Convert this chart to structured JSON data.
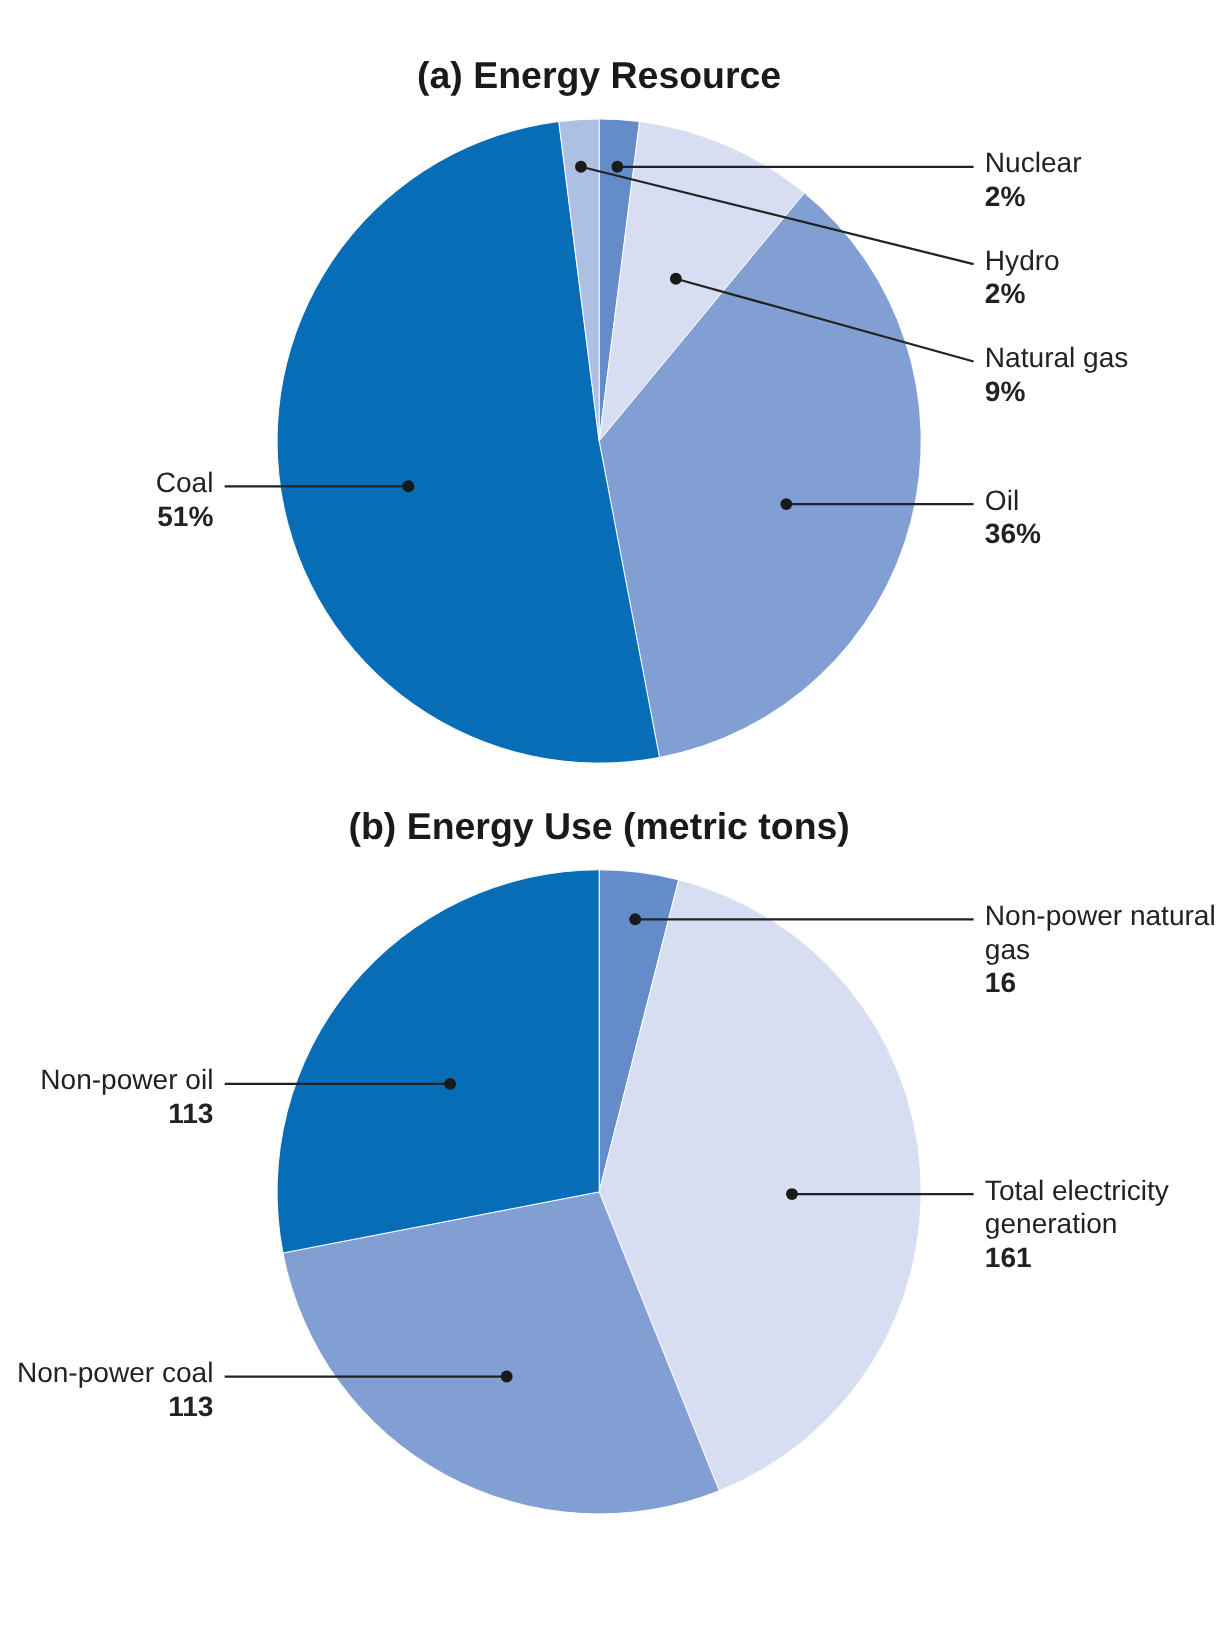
{
  "chart_data": [
    {
      "type": "pie",
      "title": "(a) Energy Resource",
      "categories": [
        "Nuclear",
        "Natural gas",
        "Oil",
        "Coal",
        "Hydro"
      ],
      "values": [
        2,
        9,
        36,
        51,
        2
      ],
      "colors": [
        "#648cc8",
        "#d8def1",
        "#819fd3",
        "#066db6",
        "#adbfe3"
      ],
      "value_labels": [
        "2%",
        "9%",
        "36%",
        "51%",
        "2%"
      ]
    },
    {
      "type": "pie",
      "title": "(b) Energy Use (metric tons)",
      "categories": [
        "Non-power natural gas",
        "Total electricity generation",
        "Non-power coal",
        "Non-power oil"
      ],
      "values": [
        16,
        161,
        113,
        113
      ],
      "colors": [
        "#648cc8",
        "#d8def1",
        "#819fd3",
        "#066db6"
      ],
      "data_labels": true
    }
  ]
}
